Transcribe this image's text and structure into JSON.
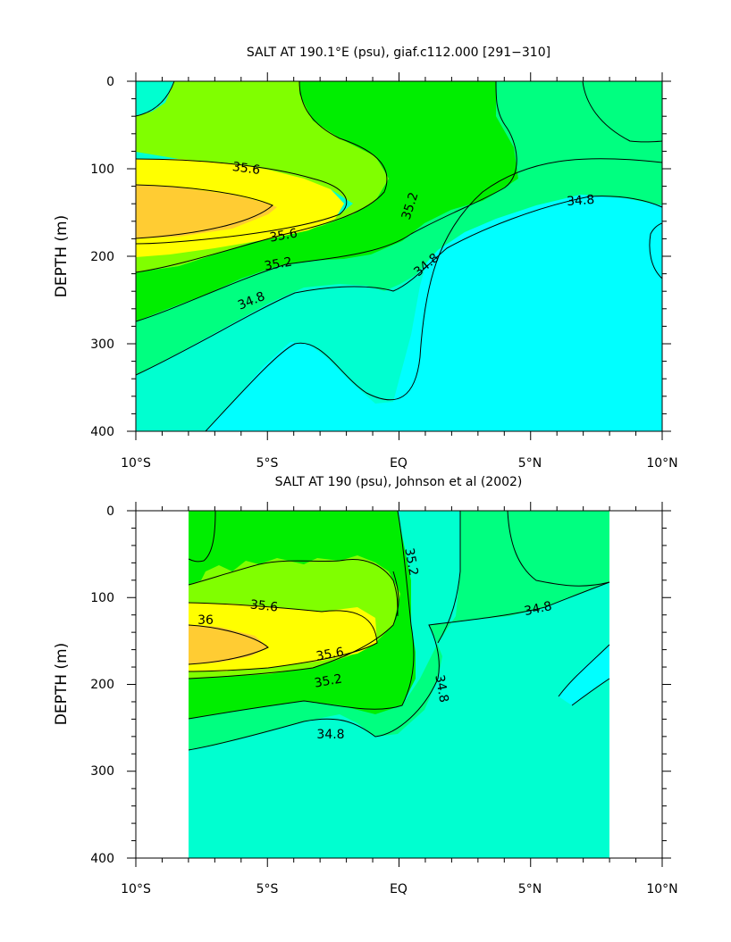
{
  "colors": {
    "cyan": "#00ffff",
    "cyan_light": "#3ff0ff",
    "aqua": "#00ffd0",
    "green_med": "#00ff80",
    "green": "#00ee00",
    "chartreuse": "#80ff00",
    "yellow": "#ffff00",
    "orange": "#ffcc33",
    "axis": "#000000"
  },
  "chart_data": [
    {
      "type": "contour",
      "title": "SALT AT 190.1°E (psu), giaf.c112.000 [291−310]",
      "xlabel": "",
      "ylabel": "DEPTH (m)",
      "xlim": [
        -10,
        10
      ],
      "ylim": [
        400,
        0
      ],
      "x_ticks": [
        "10°S",
        "5°S",
        "EQ",
        "5°N",
        "10°N"
      ],
      "y_ticks": [
        "0",
        "100",
        "200",
        "300",
        "400"
      ],
      "contour_labels": [
        "35.6",
        "35.6",
        "35.2",
        "35.2",
        "34.8",
        "34.8",
        "34.8"
      ],
      "levels": [
        34.6,
        34.8,
        35.0,
        35.2,
        35.4,
        35.6,
        35.8,
        36.0
      ],
      "salinity_core": {
        "lat": -7,
        "depth": 150,
        "value": 35.8
      }
    },
    {
      "type": "contour",
      "title": "SALT AT 190 (psu), Johnson et al (2002)",
      "xlabel": "",
      "ylabel": "DEPTH (m)",
      "xlim": [
        -10,
        10
      ],
      "ylim": [
        400,
        0
      ],
      "data_lat_range": [
        -8,
        8
      ],
      "x_ticks": [
        "10°S",
        "5°S",
        "EQ",
        "5°N",
        "10°N"
      ],
      "y_ticks": [
        "0",
        "100",
        "200",
        "300",
        "400"
      ],
      "contour_labels": [
        "35.2",
        "35.6",
        "36",
        "35.6",
        "35.2",
        "34.8",
        "34.8",
        "34.8"
      ],
      "levels": [
        34.6,
        34.8,
        35.0,
        35.2,
        35.4,
        35.6,
        35.8,
        36.0
      ],
      "salinity_core": {
        "lat": -7,
        "depth": 150,
        "value": 36.0
      }
    }
  ]
}
